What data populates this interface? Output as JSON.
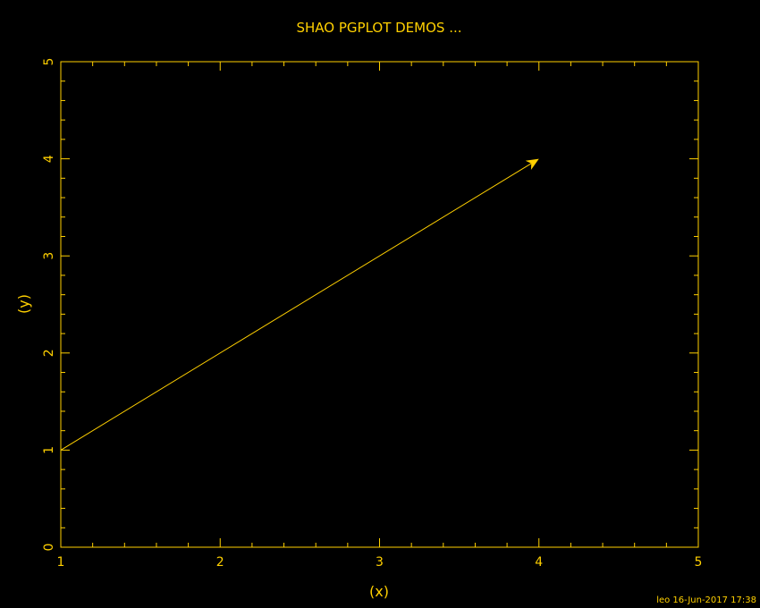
{
  "chart_data": {
    "type": "line",
    "title": "SHAO PGPLOT DEMOS ...",
    "xlabel": "(x)",
    "ylabel": "(y)",
    "xlim": [
      1,
      5
    ],
    "ylim": [
      0,
      5
    ],
    "x_ticks": [
      "1",
      "2",
      "3",
      "4",
      "5"
    ],
    "y_ticks": [
      "0",
      "1",
      "2",
      "3",
      "4",
      "5"
    ],
    "grid": false,
    "arrow": {
      "from": [
        1,
        1
      ],
      "to": [
        4,
        4
      ]
    },
    "footer": "leo 16-Jun-2017 17:38",
    "color": "#ffd000",
    "background": "#000000"
  }
}
